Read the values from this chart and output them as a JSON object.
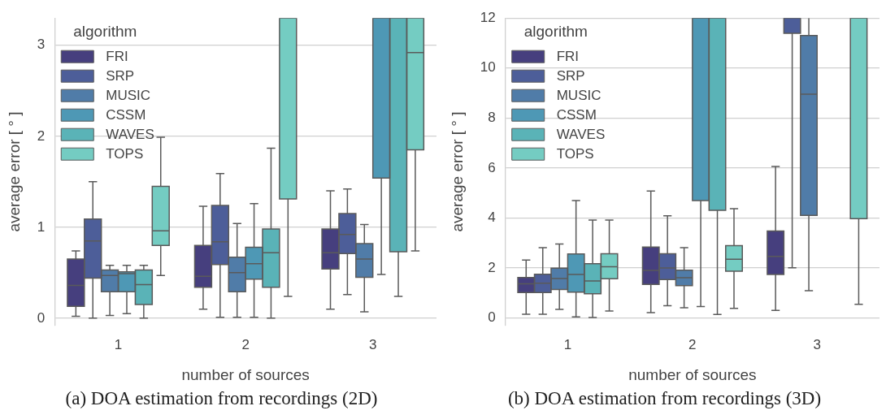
{
  "chart_data": [
    {
      "type": "box",
      "title": "(a) DOA estimation from recordings (2D)",
      "xlabel": "number of sources",
      "ylabel": "average error [ ° ]",
      "legend_title": "algorithm",
      "legend": "top left",
      "grid": "y",
      "categories": [
        "1",
        "2",
        "3"
      ],
      "ylim": [
        -0.08,
        3.3
      ],
      "yticks": [
        0,
        1,
        2,
        3
      ],
      "series": [
        {
          "name": "FRI",
          "color": "#463f7e",
          "boxes": [
            {
              "low": 0.02,
              "q1": 0.13,
              "median": 0.36,
              "q3": 0.65,
              "high": 0.74
            },
            {
              "low": 0.1,
              "q1": 0.34,
              "median": 0.46,
              "q3": 0.8,
              "high": 1.23
            },
            {
              "low": 0.1,
              "q1": 0.54,
              "median": 0.72,
              "q3": 0.98,
              "high": 1.4
            }
          ]
        },
        {
          "name": "SRP",
          "color": "#4d5e99",
          "boxes": [
            {
              "low": 0.0,
              "q1": 0.44,
              "median": 0.85,
              "q3": 1.09,
              "high": 1.5
            },
            {
              "low": 0.01,
              "q1": 0.59,
              "median": 0.84,
              "q3": 1.24,
              "high": 1.59
            },
            {
              "low": 0.26,
              "q1": 0.71,
              "median": 0.92,
              "q3": 1.15,
              "high": 1.42
            }
          ]
        },
        {
          "name": "MUSIC",
          "color": "#507ca8",
          "boxes": [
            {
              "low": 0.03,
              "q1": 0.29,
              "median": 0.47,
              "q3": 0.53,
              "high": 0.58
            },
            {
              "low": 0.01,
              "q1": 0.29,
              "median": 0.5,
              "q3": 0.67,
              "high": 1.04
            },
            {
              "low": 0.07,
              "q1": 0.45,
              "median": 0.65,
              "q3": 0.82,
              "high": 1.03
            }
          ]
        },
        {
          "name": "CSSM",
          "color": "#4e98b5",
          "boxes": [
            {
              "low": 0.05,
              "q1": 0.29,
              "median": 0.49,
              "q3": 0.51,
              "high": 0.58
            },
            {
              "low": 0.01,
              "q1": 0.43,
              "median": 0.6,
              "q3": 0.78,
              "high": 1.26
            },
            {
              "low": 0.48,
              "q1": 1.54,
              "median": null,
              "q3": 3.3,
              "high": null
            }
          ]
        },
        {
          "name": "WAVES",
          "color": "#5ab3b7",
          "boxes": [
            {
              "low": 0.0,
              "q1": 0.15,
              "median": 0.37,
              "q3": 0.53,
              "high": 0.58
            },
            {
              "low": 0.0,
              "q1": 0.34,
              "median": 0.72,
              "q3": 0.98,
              "high": 1.87
            },
            {
              "low": 0.24,
              "q1": 0.73,
              "median": null,
              "q3": 3.3,
              "high": null
            }
          ]
        },
        {
          "name": "TOPS",
          "color": "#74ccc2",
          "boxes": [
            {
              "low": 0.47,
              "q1": 0.8,
              "median": 0.96,
              "q3": 1.45,
              "high": 1.99
            },
            {
              "low": 0.24,
              "q1": 1.31,
              "median": null,
              "q3": 3.3,
              "high": null
            },
            {
              "low": 0.74,
              "q1": 1.85,
              "median": 2.92,
              "q3": 3.3,
              "high": null
            }
          ]
        }
      ]
    },
    {
      "type": "box",
      "title": "(b) DOA estimation from recordings (3D)",
      "xlabel": "number of sources",
      "ylabel": "average error [ ° ]",
      "legend_title": "algorithm",
      "legend": "top left",
      "grid": "y",
      "categories": [
        "1",
        "2",
        "3"
      ],
      "ylim": [
        -0.3,
        12
      ],
      "yticks": [
        0,
        2,
        4,
        6,
        8,
        10,
        12
      ],
      "series": [
        {
          "name": "FRI",
          "color": "#463f7e",
          "boxes": [
            {
              "low": 0.15,
              "q1": 1.02,
              "median": 1.37,
              "q3": 1.62,
              "high": 2.32
            },
            {
              "low": 0.21,
              "q1": 1.34,
              "median": 1.9,
              "q3": 2.84,
              "high": 5.08
            },
            {
              "low": 0.3,
              "q1": 1.74,
              "median": 2.46,
              "q3": 3.48,
              "high": 6.06
            }
          ]
        },
        {
          "name": "SRP",
          "color": "#4d5e99",
          "boxes": [
            {
              "low": 0.15,
              "q1": 1.02,
              "median": 1.39,
              "q3": 1.75,
              "high": 2.81
            },
            {
              "low": 0.49,
              "q1": 1.54,
              "median": 2.0,
              "q3": 2.57,
              "high": 4.09
            },
            {
              "low": 2.01,
              "q1": 11.39,
              "median": null,
              "q3": 12,
              "high": null
            }
          ]
        },
        {
          "name": "MUSIC",
          "color": "#507ca8",
          "boxes": [
            {
              "low": 0.34,
              "q1": 1.14,
              "median": 1.58,
              "q3": 1.99,
              "high": 2.96
            },
            {
              "low": 0.41,
              "q1": 1.29,
              "median": 1.61,
              "q3": 1.91,
              "high": 2.81
            },
            {
              "low": 1.09,
              "q1": 4.1,
              "median": 8.95,
              "q3": 11.3,
              "high": 12
            }
          ]
        },
        {
          "name": "CSSM",
          "color": "#4e98b5",
          "boxes": [
            {
              "low": 0.04,
              "q1": 1.03,
              "median": 1.74,
              "q3": 2.56,
              "high": 4.7
            },
            {
              "low": 0.46,
              "q1": 4.7,
              "median": null,
              "q3": 12,
              "high": null
            },
            {
              "low": null,
              "q1": null,
              "median": null,
              "q3": null,
              "high": null
            }
          ]
        },
        {
          "name": "WAVES",
          "color": "#5ab3b7",
          "boxes": [
            {
              "low": 0.02,
              "q1": 0.97,
              "median": 1.48,
              "q3": 2.17,
              "high": 3.92
            },
            {
              "low": 0.14,
              "q1": 4.31,
              "median": null,
              "q3": 12,
              "high": null
            },
            {
              "low": null,
              "q1": null,
              "median": null,
              "q3": null,
              "high": null
            }
          ]
        },
        {
          "name": "TOPS",
          "color": "#74ccc2",
          "boxes": [
            {
              "low": 0.28,
              "q1": 1.57,
              "median": 2.05,
              "q3": 2.57,
              "high": 3.92
            },
            {
              "low": 0.38,
              "q1": 1.87,
              "median": 2.35,
              "q3": 2.89,
              "high": 4.37
            },
            {
              "low": 0.55,
              "q1": 3.97,
              "median": null,
              "q3": 12,
              "high": null
            }
          ]
        }
      ]
    }
  ]
}
